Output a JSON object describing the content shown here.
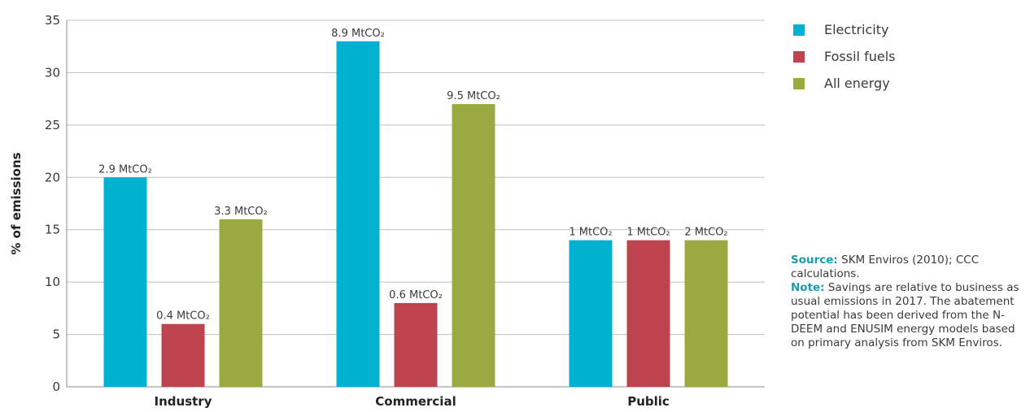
{
  "chart_data": {
    "type": "bar",
    "ylabel": "% of emissions",
    "ylim": [
      0,
      35
    ],
    "yticks": [
      0,
      5,
      10,
      15,
      20,
      25,
      30,
      35
    ],
    "categories": [
      "Industry",
      "Commercial",
      "Public"
    ],
    "series": [
      {
        "name": "Electricity",
        "color": "#00b1d1",
        "values": [
          20,
          33,
          14
        ],
        "labels": [
          "2.9 MtCO₂",
          "8.9 MtCO₂",
          "1 MtCO₂"
        ]
      },
      {
        "name": "Fossil fuels",
        "color": "#bd444e",
        "values": [
          6,
          8,
          14
        ],
        "labels": [
          "0.4 MtCO₂",
          "0.6 MtCO₂",
          "1 MtCO₂"
        ]
      },
      {
        "name": "All energy",
        "color": "#9ca840",
        "values": [
          16,
          27,
          14
        ],
        "labels": [
          "3.3 MtCO₂",
          "9.5 MtCO₂",
          "2 MtCO₂"
        ]
      }
    ],
    "grid": true,
    "legend_position": "top-right"
  },
  "notes": {
    "source_label": "Source:",
    "source_text": "SKM Enviros (2010); CCC calculations.",
    "note_label": "Note:",
    "note_text": "Savings are relative to business as usual emissions in 2017. The abatement potential has been derived from the N-DEEM and ENUSIM energy models based on primary analysis from SKM Enviros."
  }
}
